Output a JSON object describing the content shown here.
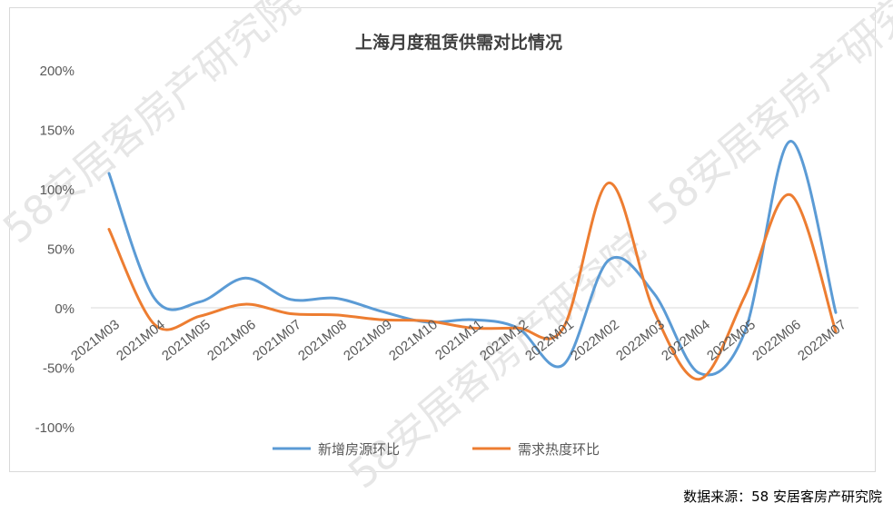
{
  "source_note": "数据来源：58 安居客房产研究院",
  "watermark": "58安居客房产研究院",
  "colors": {
    "series_blue": "#5b9bd5",
    "series_orange": "#ed7d31",
    "axis_text": "#595959",
    "title_text": "#404040",
    "zero_line": "#d9d9d9"
  },
  "chart_data": {
    "type": "line",
    "title": "上海月度租赁供需对比情况",
    "x": [
      "2021M03",
      "2021M04",
      "2021M05",
      "2021M06",
      "2021M07",
      "2021M08",
      "2021M09",
      "2021M10",
      "2021M11",
      "2021M12",
      "2022M01",
      "2022M02",
      "2022M03",
      "2022M04",
      "2022M05",
      "2022M06",
      "2022M07"
    ],
    "y_ticks": [
      "200%",
      "150%",
      "100%",
      "50%",
      "0%",
      "-50%",
      "-100%"
    ],
    "ylim": [
      -100,
      200
    ],
    "y_unit": "%",
    "grid": false,
    "legend": "bottom",
    "series": [
      {
        "name": "新增房源环比",
        "values": [
          113,
          8,
          5,
          25,
          7,
          8,
          -3,
          -12,
          -10,
          -17,
          -48,
          40,
          12,
          -55,
          -20,
          140,
          -4
        ]
      },
      {
        "name": "需求热度环比",
        "values": [
          66,
          -14,
          -7,
          3,
          -5,
          -6,
          -10,
          -11,
          -17,
          -17,
          -17,
          105,
          -3,
          -60,
          10,
          95,
          -20
        ]
      }
    ]
  }
}
